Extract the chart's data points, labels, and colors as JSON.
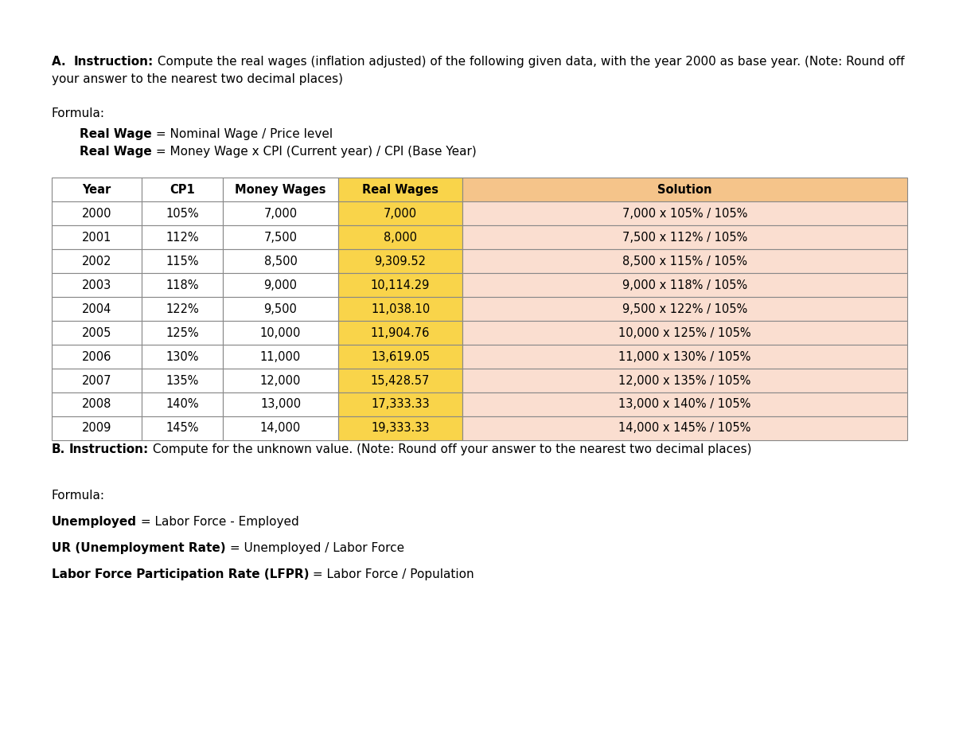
{
  "table_headers": [
    "Year",
    "CP1",
    "Money Wages",
    "Real Wages",
    "Solution"
  ],
  "table_data": [
    [
      "2000",
      "105%",
      "7,000",
      "7,000",
      "7,000 x 105% / 105%"
    ],
    [
      "2001",
      "112%",
      "7,500",
      "8,000",
      "7,500 x 112% / 105%"
    ],
    [
      "2002",
      "115%",
      "8,500",
      "9,309.52",
      "8,500 x 115% / 105%"
    ],
    [
      "2003",
      "118%",
      "9,000",
      "10,114.29",
      "9,000 x 118% / 105%"
    ],
    [
      "2004",
      "122%",
      "9,500",
      "11,038.10",
      "9,500 x 122% / 105%"
    ],
    [
      "2005",
      "125%",
      "10,000",
      "11,904.76",
      "10,000 x 125% / 105%"
    ],
    [
      "2006",
      "130%",
      "11,000",
      "13,619.05",
      "11,000 x 130% / 105%"
    ],
    [
      "2007",
      "135%",
      "12,000",
      "15,428.57",
      "12,000 x 135% / 105%"
    ],
    [
      "2008",
      "140%",
      "13,000",
      "17,333.33",
      "13,000 x 140% / 105%"
    ],
    [
      "2009",
      "145%",
      "14,000",
      "19,333.33",
      "14,000 x 145% / 105%"
    ]
  ],
  "col_header_bg": [
    "#ffffff",
    "#ffffff",
    "#ffffff",
    "#F9D44A",
    "#F5C48A"
  ],
  "real_wages_data_bg": "#F9D44A",
  "solution_data_bg": "#FADED0",
  "white_bg": "#ffffff",
  "border_color": "#888888",
  "bg_color": "#ffffff",
  "fontsize": 11,
  "table_fontsize": 10.5
}
